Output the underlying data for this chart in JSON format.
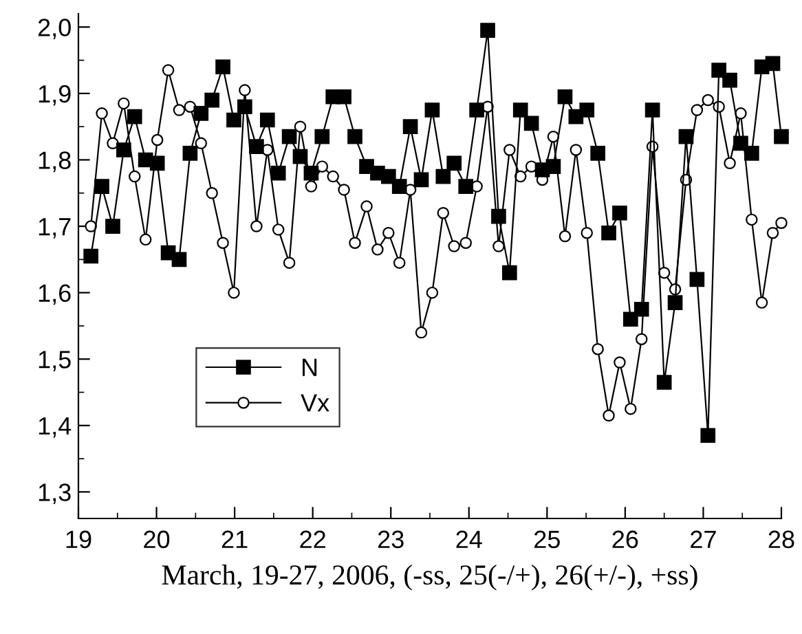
{
  "chart_data": {
    "type": "line",
    "xlabel": "March, 19-27, 2006, (-ss, 25(-/+), 26(+/-), +ss)",
    "x": [
      19.16,
      19.3,
      19.44,
      19.58,
      19.72,
      19.86,
      20.01,
      20.15,
      20.29,
      20.43,
      20.57,
      20.71,
      20.85,
      20.99,
      21.13,
      21.28,
      21.42,
      21.56,
      21.7,
      21.84,
      21.98,
      22.12,
      22.26,
      22.4,
      22.54,
      22.69,
      22.83,
      22.97,
      23.11,
      23.25,
      23.39,
      23.53,
      23.67,
      23.81,
      23.96,
      24.1,
      24.24,
      24.38,
      24.52,
      24.66,
      24.8,
      24.94,
      25.08,
      25.23,
      25.37,
      25.51,
      25.65,
      25.79,
      25.93,
      26.07,
      26.21,
      26.35,
      26.5,
      26.64,
      26.78,
      26.92,
      27.06,
      27.2,
      27.34,
      27.48,
      27.62,
      27.75,
      27.89,
      28.0
    ],
    "series": [
      {
        "name": "N",
        "color": "#000000",
        "marker": "square",
        "values": [
          1.655,
          1.76,
          1.7,
          1.815,
          1.865,
          1.8,
          1.795,
          1.66,
          1.65,
          1.81,
          1.87,
          1.89,
          1.94,
          1.86,
          1.88,
          1.82,
          1.86,
          1.78,
          1.835,
          1.805,
          1.78,
          1.835,
          1.895,
          1.895,
          1.835,
          1.79,
          1.78,
          1.775,
          1.76,
          1.85,
          1.77,
          1.875,
          1.775,
          1.795,
          1.76,
          1.875,
          1.995,
          1.715,
          1.63,
          1.875,
          1.855,
          1.785,
          1.79,
          1.895,
          1.865,
          1.875,
          1.81,
          1.69,
          1.72,
          1.56,
          1.575,
          1.875,
          1.465,
          1.585,
          1.835,
          1.62,
          1.385,
          1.935,
          1.92,
          1.825,
          1.81,
          1.94,
          1.945,
          1.835
        ]
      },
      {
        "name": "Vx",
        "color": "#000000",
        "marker": "circle",
        "values": [
          1.7,
          1.87,
          1.825,
          1.885,
          1.775,
          1.68,
          1.83,
          1.935,
          1.875,
          1.88,
          1.825,
          1.75,
          1.675,
          1.6,
          1.905,
          1.7,
          1.815,
          1.695,
          1.645,
          1.85,
          1.76,
          1.79,
          1.775,
          1.755,
          1.675,
          1.73,
          1.665,
          1.69,
          1.645,
          1.755,
          1.54,
          1.6,
          1.72,
          1.67,
          1.675,
          1.76,
          1.88,
          1.67,
          1.815,
          1.775,
          1.79,
          1.77,
          1.835,
          1.685,
          1.815,
          1.69,
          1.515,
          1.415,
          1.495,
          1.425,
          1.53,
          1.82,
          1.63,
          1.605,
          1.77,
          1.875,
          1.89,
          1.88,
          1.795,
          1.87,
          1.71,
          1.585,
          1.69,
          1.705
        ]
      }
    ],
    "xlim": [
      19,
      28
    ],
    "xticks": [
      19,
      20,
      21,
      22,
      23,
      24,
      25,
      26,
      27,
      28
    ],
    "ylim": [
      1.26,
      2.02
    ],
    "yticks": [
      {
        "value": 1.3,
        "label": "1,3"
      },
      {
        "value": 1.4,
        "label": "1,4"
      },
      {
        "value": 1.5,
        "label": "1,5"
      },
      {
        "value": 1.6,
        "label": "1,6"
      },
      {
        "value": 1.7,
        "label": "1,7"
      },
      {
        "value": 1.8,
        "label": "1,8"
      },
      {
        "value": 1.9,
        "label": "1,9"
      },
      {
        "value": 2.0,
        "label": "2,0"
      }
    ],
    "grid": false,
    "legend": "center left",
    "line_style": "solid"
  }
}
